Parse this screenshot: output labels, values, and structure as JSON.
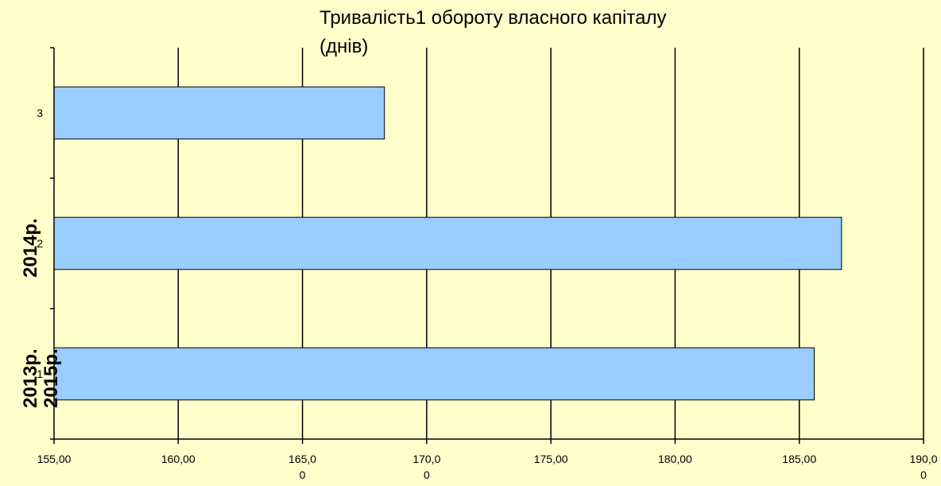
{
  "chart_data": {
    "type": "bar",
    "orientation": "horizontal",
    "title_lines": [
      "Тривалість1  обороту власного капіталу",
      "(днів)"
    ],
    "categories": [
      "1",
      "2",
      "3"
    ],
    "values": [
      185.6,
      186.7,
      168.3
    ],
    "xlim": [
      155,
      190
    ],
    "x_ticks": [
      155,
      160,
      165,
      170,
      175,
      180,
      185,
      190
    ],
    "x_tick_labels": [
      [
        "155,00"
      ],
      [
        "160,00"
      ],
      [
        "165,0",
        "0"
      ],
      [
        "170,0",
        "0"
      ],
      [
        "175,00"
      ],
      [
        "180,00"
      ],
      [
        "185,00"
      ],
      [
        "190,0",
        "0"
      ]
    ],
    "side_labels": [
      "2014р.",
      "2013р.",
      "2015р."
    ],
    "grid": "vertical",
    "legend": "none",
    "bar_color": "#99CCFF",
    "background_color": "#FFFFCC"
  }
}
